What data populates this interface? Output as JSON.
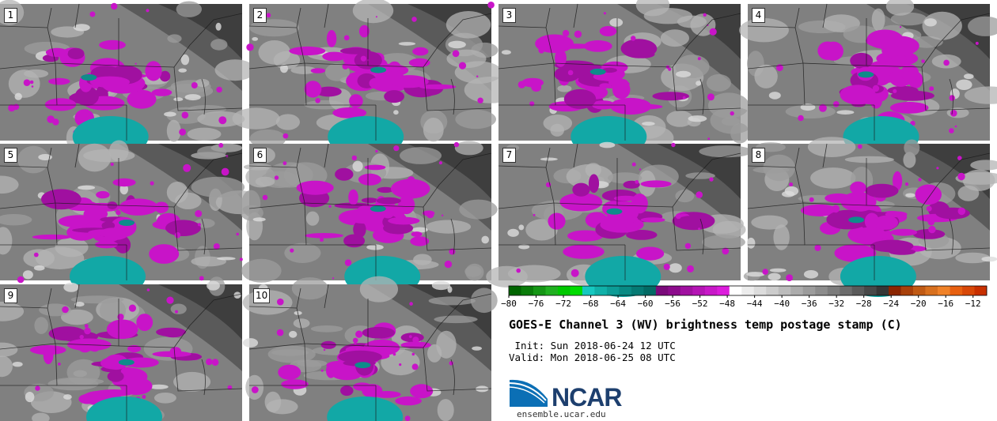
{
  "panels": [
    {
      "label": "1",
      "seed": 11
    },
    {
      "label": "2",
      "seed": 23
    },
    {
      "label": "3",
      "seed": 37
    },
    {
      "label": "4",
      "seed": 41
    },
    {
      "label": "5",
      "seed": 53
    },
    {
      "label": "6",
      "seed": 67
    },
    {
      "label": "7",
      "seed": 71
    },
    {
      "label": "8",
      "seed": 83
    },
    {
      "label": "9",
      "seed": 97
    },
    {
      "label": "10",
      "seed": 101
    }
  ],
  "colorbar": {
    "min": -80,
    "max": -10,
    "tick_labels": [
      "−80",
      "−76",
      "−72",
      "−68",
      "−64",
      "−60",
      "−56",
      "−52",
      "−48",
      "−44",
      "−40",
      "−36",
      "−32",
      "−28",
      "−24",
      "−20",
      "−16",
      "−12"
    ],
    "bin_colors": [
      "#006400",
      "#0a7c0a",
      "#159615",
      "#20b020",
      "#00c800",
      "#00dc00",
      "#16c8c0",
      "#10b0a8",
      "#0c9c96",
      "#088a84",
      "#057a74",
      "#036a64",
      "#7a0a7a",
      "#8c0c8c",
      "#a010a0",
      "#b414b4",
      "#c818c8",
      "#dc1cdc",
      "#ffffff",
      "#ececec",
      "#dcdcdc",
      "#cccccc",
      "#bcbcbc",
      "#acacac",
      "#9c9c9c",
      "#8c8c8c",
      "#7c7c7c",
      "#6c6c6c",
      "#5a5a5a",
      "#484848",
      "#363636",
      "#8b2500",
      "#a8400a",
      "#c05a14",
      "#d8701e",
      "#f08228",
      "#e86010",
      "#d84808",
      "#c83000"
    ]
  },
  "title": "GOES-E Channel 3 (WV) brightness temp postage stamp (C)",
  "init_label": " Init: Sun 2018-06-24 12 UTC",
  "valid_label": "Valid: Mon 2018-06-25 08 UTC",
  "logo": {
    "name": "NCAR",
    "url": "ensemble.ucar.edu"
  },
  "colors": {
    "magenta": "#c814c8",
    "teal": "#12a8a6",
    "gray_bg": "#7d7d7d"
  }
}
